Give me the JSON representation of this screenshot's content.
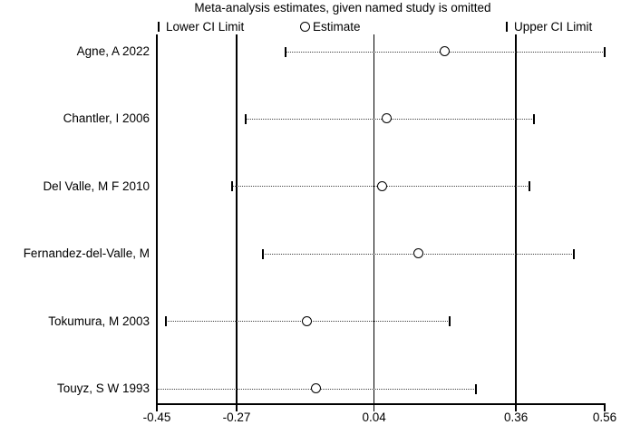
{
  "title": "Meta-analysis estimates, given named study is omitted",
  "legend": {
    "lower_label": "Lower CI Limit",
    "estimate_label": "Estimate",
    "upper_label": "Upper CI Limit"
  },
  "colors": {
    "line": "#000000",
    "dotted_line": "#444444",
    "marker_fill": "#ffffff",
    "background": "#ffffff",
    "text": "#000000"
  },
  "chart_data": {
    "type": "scatter",
    "variant": "leave-one-out-meta-analysis-forest",
    "title": "Meta-analysis estimates, given named study is omitted",
    "xlabel": "",
    "ylabel": "",
    "grid": false,
    "legend_position": "top",
    "xlim": [
      -0.45,
      0.56
    ],
    "x_ticks": [
      -0.45,
      -0.27,
      0.04,
      0.36,
      0.56
    ],
    "x_tick_labels": [
      "-0.45",
      "-0.27",
      "0.04",
      "0.36",
      "0.56"
    ],
    "reference_lines": {
      "overall_lower": -0.27,
      "overall_estimate": 0.04,
      "overall_upper": 0.36
    },
    "studies": [
      {
        "label": "Agne, A 2022",
        "lower": -0.16,
        "estimate": 0.2,
        "upper": 0.56
      },
      {
        "label": "Chantler, I 2006",
        "lower": -0.25,
        "estimate": 0.07,
        "upper": 0.4
      },
      {
        "label": "Del Valle, M F 2010",
        "lower": -0.28,
        "estimate": 0.06,
        "upper": 0.39
      },
      {
        "label": "Fernandez-del-Valle, M",
        "lower": -0.21,
        "estimate": 0.14,
        "upper": 0.49
      },
      {
        "label": "Tokumura, M 2003",
        "lower": -0.43,
        "estimate": -0.11,
        "upper": 0.21
      },
      {
        "label": "Touyz, S W 1993",
        "lower": -0.45,
        "estimate": -0.09,
        "upper": 0.27
      }
    ]
  }
}
